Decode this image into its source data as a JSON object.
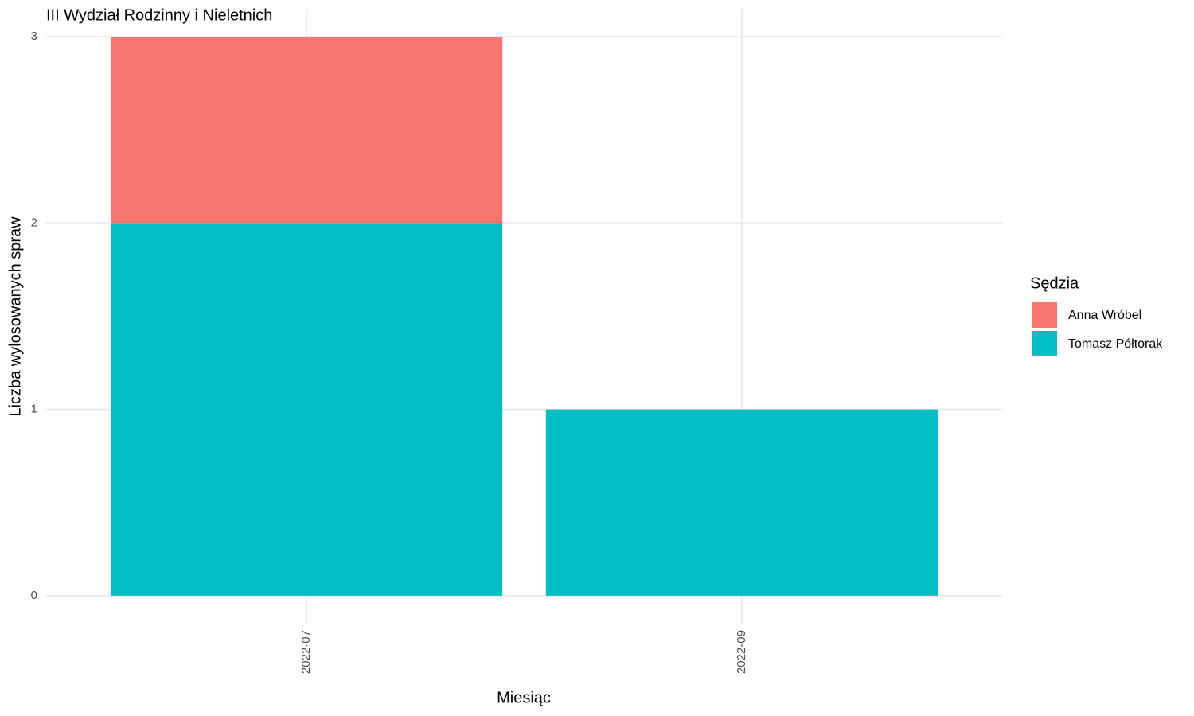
{
  "chart_data": {
    "type": "stacked_bar",
    "title": "III Wydział Rodzinny i Nieletnich",
    "x_label": "Miesiąc",
    "y_label": "Liczba wylosowanych spraw",
    "categories": [
      "2022-07",
      "2022-09"
    ],
    "series": [
      {
        "name": "Anna Wróbel",
        "color": "#f8766d",
        "values": [
          1,
          null
        ]
      },
      {
        "name": "Tomasz Półtorak",
        "color": "#00bfc4",
        "values": [
          2,
          1
        ]
      }
    ],
    "ylim": [
      -0.15,
      3.15
    ],
    "yticks": [
      0,
      1,
      2,
      3
    ],
    "grid": true,
    "legend_title": "Sędzia",
    "legend_position": "right"
  }
}
